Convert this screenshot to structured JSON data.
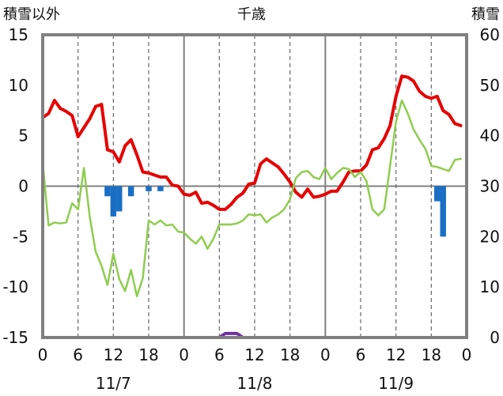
{
  "chart_data": {
    "type": "line",
    "title": "千歳",
    "left_axis": {
      "label": "積雪以外",
      "ticks": [
        "15",
        "10",
        "5",
        "0",
        "-5",
        "-10",
        "-15"
      ],
      "ylim": [
        -15,
        15
      ]
    },
    "right_axis": {
      "label": "積雪",
      "ticks": [
        "60",
        "50",
        "40",
        "30",
        "20",
        "10",
        "0"
      ],
      "ylim": [
        0,
        60
      ]
    },
    "x_axis": {
      "hour_ticks": [
        "0",
        "6",
        "12",
        "18",
        "0",
        "6",
        "12",
        "18",
        "0",
        "6",
        "12",
        "18",
        "0"
      ],
      "date_labels": [
        "11/7",
        "11/8",
        "11/9"
      ],
      "range_hours": [
        0,
        72
      ]
    },
    "colors": {
      "temperature": "#e60000",
      "dewpoint": "#8fcc4f",
      "precipitation": "#1a6fc4",
      "snow_depth": "#7030a0"
    },
    "series": [
      {
        "key": "temperature",
        "x": [
          0,
          1,
          2,
          3,
          4,
          5,
          6,
          7,
          8,
          9,
          10,
          11,
          12,
          13,
          14,
          15,
          16,
          17,
          18,
          19,
          20,
          21,
          22,
          23,
          24,
          25,
          26,
          27,
          28,
          29,
          30,
          31,
          32,
          33,
          34,
          35,
          36,
          37,
          38,
          39,
          40,
          41,
          42,
          43,
          44,
          45,
          46,
          47,
          48,
          49,
          50,
          51,
          52,
          53,
          54,
          55,
          56,
          57,
          58,
          59,
          60,
          61,
          62,
          63,
          64,
          65,
          66,
          67,
          68,
          69,
          70,
          71
        ],
        "y": [
          6.8,
          7.2,
          8.5,
          7.7,
          7.4,
          7.0,
          4.9,
          5.8,
          6.7,
          7.9,
          8.1,
          3.6,
          3.4,
          2.4,
          4.0,
          4.6,
          3.1,
          1.4,
          1.3,
          1.1,
          0.9,
          0.9,
          0.1,
          0.0,
          -0.8,
          -0.9,
          -0.6,
          -1.7,
          -1.6,
          -1.9,
          -2.3,
          -2.3,
          -1.8,
          -1.1,
          -0.7,
          0.2,
          0.3,
          2.2,
          2.7,
          2.3,
          1.9,
          1.2,
          0.4,
          -0.6,
          -1.1,
          -0.3,
          -1.1,
          -1.0,
          -0.8,
          -0.5,
          -0.5,
          0.4,
          1.4,
          1.5,
          1.5,
          2.1,
          3.6,
          3.8,
          4.7,
          6.0,
          8.9,
          10.9,
          10.8,
          10.4,
          9.4,
          8.9,
          8.7,
          8.9,
          7.5,
          7.1,
          6.2,
          6.0
        ]
      },
      {
        "key": "dewpoint",
        "x": [
          0,
          1,
          2,
          3,
          4,
          5,
          6,
          7,
          8,
          9,
          10,
          11,
          12,
          13,
          14,
          15,
          16,
          17,
          18,
          19,
          20,
          21,
          22,
          23,
          24,
          25,
          26,
          27,
          28,
          29,
          30,
          31,
          32,
          33,
          34,
          35,
          36,
          37,
          38,
          39,
          40,
          41,
          42,
          43,
          44,
          45,
          46,
          47,
          48,
          49,
          50,
          51,
          52,
          53,
          54,
          55,
          56,
          57,
          58,
          59,
          60,
          61,
          62,
          63,
          64,
          65,
          66,
          67,
          68,
          69,
          70,
          71
        ],
        "y": [
          2.3,
          -3.9,
          -3.6,
          -3.7,
          -3.6,
          -1.7,
          -2.3,
          1.8,
          -3.1,
          -6.5,
          -7.9,
          -9.8,
          -6.7,
          -9.2,
          -10.4,
          -8.3,
          -10.9,
          -9.1,
          -3.4,
          -3.8,
          -3.4,
          -3.9,
          -3.8,
          -4.5,
          -4.6,
          -5.2,
          -5.7,
          -5.0,
          -6.2,
          -5.2,
          -3.8,
          -3.8,
          -3.8,
          -3.7,
          -3.4,
          -2.8,
          -2.9,
          -2.8,
          -3.6,
          -3.1,
          -2.8,
          -2.3,
          -1.3,
          0.8,
          1.4,
          1.5,
          0.9,
          0.7,
          1.8,
          0.7,
          1.3,
          1.8,
          1.7,
          0.9,
          1.4,
          0.5,
          -2.3,
          -2.9,
          -2.3,
          2.0,
          6.4,
          8.5,
          7.2,
          5.6,
          4.6,
          3.7,
          2.0,
          1.9,
          1.7,
          1.5,
          2.6,
          2.7
        ]
      },
      {
        "key": "precipitation",
        "type": "bar",
        "x": [
          11,
          12,
          13,
          15,
          18,
          20,
          67,
          68
        ],
        "y": [
          -1.0,
          -3.0,
          -2.5,
          -1.0,
          -0.5,
          -0.5,
          -1.5,
          -5.0
        ]
      },
      {
        "key": "snow_depth",
        "axis": "right",
        "x": [
          0,
          30,
          31,
          33,
          34,
          72
        ],
        "y": [
          0,
          0,
          0.8,
          0.8,
          0,
          0
        ]
      }
    ]
  }
}
